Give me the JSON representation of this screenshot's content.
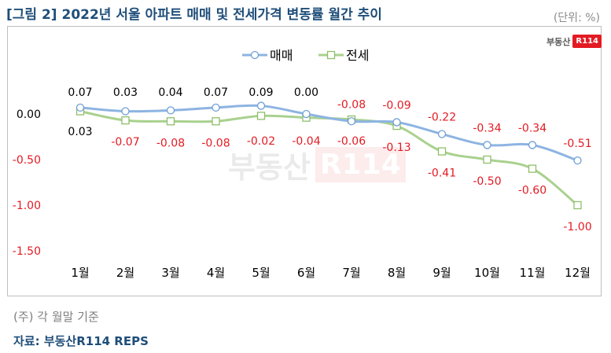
{
  "header": {
    "title": "[그림 2] 2022년 서울 아파트 매매 및 전세가격 변동률 월간 추이",
    "unit": "(단위: %)"
  },
  "brand": {
    "text": "부동산",
    "badge": "R114"
  },
  "watermark": {
    "text": "부동산",
    "badge": "R114"
  },
  "footer": {
    "note": "(주) 각 월말 기준",
    "source": "자료: 부동산R114 REPS"
  },
  "colors": {
    "sale": "#8db4e2",
    "jeonse": "#a9d18e",
    "negative": "#e31b23",
    "positive": "#000000"
  },
  "chart_data": {
    "type": "line",
    "categories": [
      "1월",
      "2월",
      "3월",
      "4월",
      "5월",
      "6월",
      "7월",
      "8월",
      "9월",
      "10월",
      "11월",
      "12월"
    ],
    "series": [
      {
        "name": "매매",
        "values": [
          0.07,
          0.03,
          0.04,
          0.07,
          0.09,
          0.0,
          -0.08,
          -0.09,
          -0.22,
          -0.34,
          -0.34,
          -0.51
        ],
        "labels": [
          "0.07",
          "0.03",
          "0.04",
          "0.07",
          "0.09",
          "0.00",
          "-0.08",
          "-0.09",
          "-0.22",
          "-0.34",
          "-0.34",
          "-0.51"
        ]
      },
      {
        "name": "전세",
        "values": [
          0.03,
          -0.07,
          -0.08,
          -0.08,
          -0.02,
          -0.04,
          -0.06,
          -0.13,
          -0.41,
          -0.5,
          -0.6,
          -1.0
        ],
        "labels": [
          "0.03",
          "-0.07",
          "-0.08",
          "-0.08",
          "-0.02",
          "-0.04",
          "-0.06",
          "-0.13",
          "-0.41",
          "-0.50",
          "-0.60",
          "-1.00"
        ]
      }
    ],
    "yticks": [
      "0.00",
      "-0.50",
      "-1.00",
      "-1.50"
    ],
    "ytick_values": [
      0,
      -0.5,
      -1.0,
      -1.5
    ],
    "ylim": [
      -1.5,
      0.1
    ],
    "legend": "top-center",
    "grid": false
  }
}
